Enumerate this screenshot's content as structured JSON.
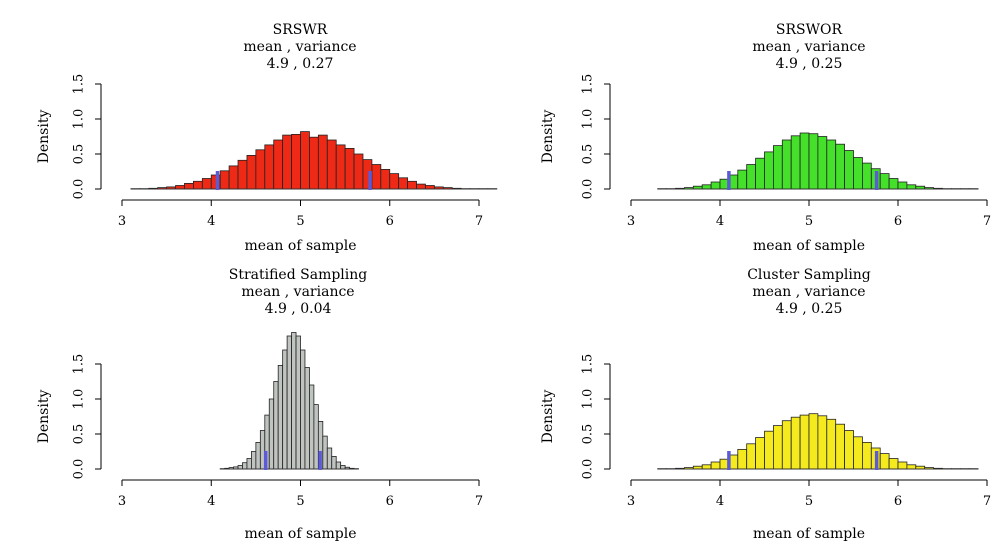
{
  "chart_data": [
    {
      "type": "histogram",
      "title": "SRSWR",
      "subtitle": "mean , variance",
      "stats": "4.9 , 0.27",
      "xlabel": "mean of sample",
      "ylabel": "Density",
      "xlim": [
        3,
        7
      ],
      "ylim": [
        0,
        1.5
      ],
      "xticks": [
        "3",
        "4",
        "5",
        "6",
        "7"
      ],
      "yticks": [
        "0.0",
        "0.5",
        "1.0",
        "1.5"
      ],
      "bar_color": "#ee2a16",
      "marker_color": "#5b5bd6",
      "markers": [
        4.07,
        5.78
      ],
      "bins": {
        "start": 3.1,
        "width": 0.1,
        "values": [
          0.005,
          0.005,
          0.01,
          0.02,
          0.03,
          0.05,
          0.08,
          0.11,
          0.15,
          0.2,
          0.26,
          0.33,
          0.41,
          0.48,
          0.56,
          0.63,
          0.7,
          0.77,
          0.78,
          0.82,
          0.74,
          0.77,
          0.7,
          0.63,
          0.58,
          0.5,
          0.42,
          0.35,
          0.28,
          0.22,
          0.16,
          0.11,
          0.07,
          0.05,
          0.03,
          0.02,
          0.01,
          0.005,
          0.005,
          0.005,
          0.005
        ]
      }
    },
    {
      "type": "histogram",
      "title": "SRSWOR",
      "subtitle": "mean , variance",
      "stats": "4.9 , 0.25",
      "xlabel": "mean of sample",
      "ylabel": "Density",
      "xlim": [
        3,
        7
      ],
      "ylim": [
        0,
        1.5
      ],
      "xticks": [
        "3",
        "4",
        "5",
        "6",
        "7"
      ],
      "yticks": [
        "0.0",
        "0.5",
        "1.0",
        "1.5"
      ],
      "bar_color": "#44e02a",
      "marker_color": "#5b5bd6",
      "markers": [
        4.1,
        5.76
      ],
      "bins": {
        "start": 3.3,
        "width": 0.1,
        "values": [
          0.005,
          0.005,
          0.01,
          0.02,
          0.04,
          0.06,
          0.1,
          0.14,
          0.2,
          0.27,
          0.35,
          0.44,
          0.53,
          0.62,
          0.7,
          0.76,
          0.8,
          0.79,
          0.75,
          0.7,
          0.64,
          0.55,
          0.45,
          0.37,
          0.29,
          0.22,
          0.15,
          0.1,
          0.06,
          0.04,
          0.02,
          0.01,
          0.005,
          0.005,
          0.005,
          0.005
        ]
      }
    },
    {
      "type": "histogram",
      "title": "Stratified Sampling",
      "subtitle": "mean , variance",
      "stats": "4.9 , 0.04",
      "xlabel": "mean of sample",
      "ylabel": "Density",
      "xlim": [
        3,
        7
      ],
      "ylim": [
        0,
        1.5
      ],
      "xticks": [
        "3",
        "4",
        "5",
        "6",
        "7"
      ],
      "yticks": [
        "0.0",
        "0.5",
        "1.0",
        "1.5"
      ],
      "bar_color": "#c0c4c0",
      "marker_color": "#5b5bd6",
      "markers": [
        4.61,
        5.22
      ],
      "bins": {
        "start": 4.1,
        "width": 0.05,
        "values": [
          0.005,
          0.01,
          0.02,
          0.03,
          0.05,
          0.09,
          0.15,
          0.25,
          0.38,
          0.55,
          0.77,
          1.0,
          1.25,
          1.48,
          1.7,
          1.9,
          1.95,
          1.9,
          1.7,
          1.45,
          1.2,
          0.92,
          0.68,
          0.47,
          0.3,
          0.18,
          0.1,
          0.05,
          0.025,
          0.01,
          0.005
        ]
      }
    },
    {
      "type": "histogram",
      "title": "Cluster Sampling",
      "subtitle": "mean , variance",
      "stats": "4.9 , 0.25",
      "xlabel": "mean of sample",
      "ylabel": "Density",
      "xlim": [
        3,
        7
      ],
      "ylim": [
        0,
        1.5
      ],
      "xticks": [
        "3",
        "4",
        "5",
        "6",
        "7"
      ],
      "yticks": [
        "0.0",
        "0.5",
        "1.0",
        "1.5"
      ],
      "bar_color": "#f5ea1e",
      "marker_color": "#5b5bd6",
      "markers": [
        4.1,
        5.76
      ],
      "bins": {
        "start": 3.3,
        "width": 0.1,
        "values": [
          0.005,
          0.005,
          0.01,
          0.02,
          0.04,
          0.06,
          0.1,
          0.14,
          0.2,
          0.28,
          0.36,
          0.45,
          0.54,
          0.62,
          0.69,
          0.74,
          0.77,
          0.79,
          0.76,
          0.71,
          0.64,
          0.55,
          0.46,
          0.38,
          0.3,
          0.22,
          0.15,
          0.1,
          0.06,
          0.04,
          0.02,
          0.01,
          0.005,
          0.005,
          0.005,
          0.005
        ]
      }
    }
  ]
}
